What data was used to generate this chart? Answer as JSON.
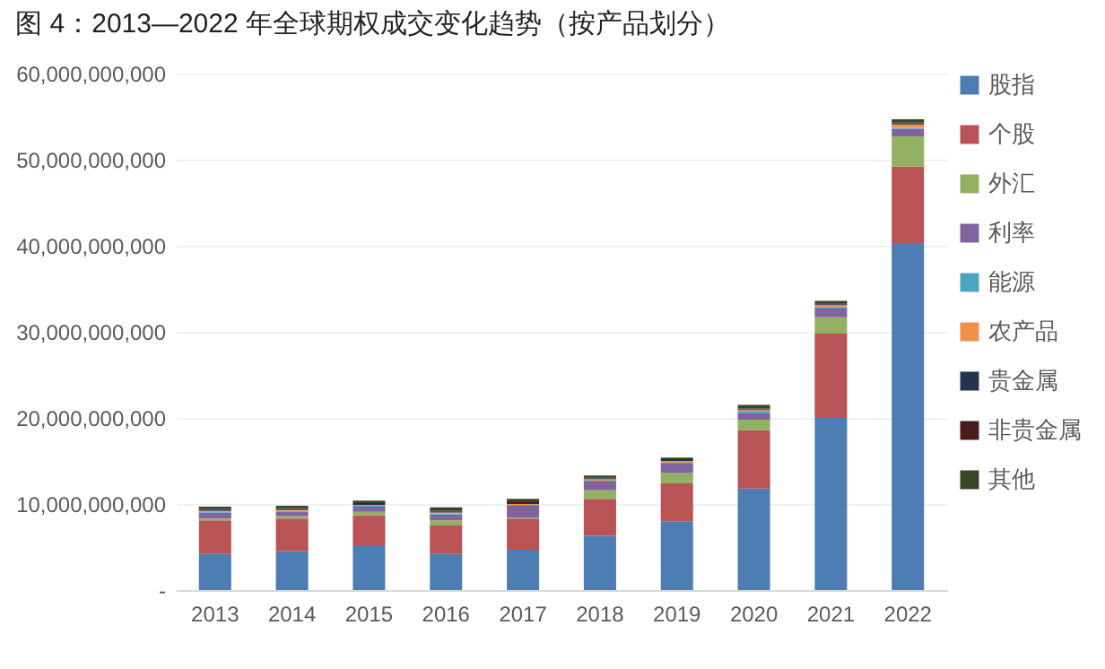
{
  "chart_data": {
    "type": "bar",
    "title": "图 4：2013—2022 年全球期权成交变化趋势（按产品划分）",
    "stacked": true,
    "legend": "right",
    "grid": "y",
    "categories": [
      "2013",
      "2014",
      "2015",
      "2016",
      "2017",
      "2018",
      "2019",
      "2020",
      "2021",
      "2022"
    ],
    "ylim": [
      0,
      60000000000
    ],
    "yticks": [
      {
        "value": 0,
        "label": "-"
      },
      {
        "value": 10000000000,
        "label": "10,000,000,000"
      },
      {
        "value": 20000000000,
        "label": "20,000,000,000"
      },
      {
        "value": 30000000000,
        "label": "30,000,000,000"
      },
      {
        "value": 40000000000,
        "label": "40,000,000,000"
      },
      {
        "value": 50000000000,
        "label": "50,000,000,000"
      },
      {
        "value": 60000000000,
        "label": "60,000,000,000"
      }
    ],
    "series": [
      {
        "name": "股指",
        "color": "#4e7db4",
        "values": [
          4200000000,
          4500000000,
          5100000000,
          4200000000,
          4700000000,
          6300000000,
          8000000000,
          11800000000,
          20100000000,
          40300000000
        ]
      },
      {
        "name": "个股",
        "color": "#b85456",
        "values": [
          3900000000,
          3800000000,
          3600000000,
          3300000000,
          3600000000,
          4300000000,
          4400000000,
          6800000000,
          9700000000,
          8900000000
        ]
      },
      {
        "name": "外汇",
        "color": "#94b063",
        "values": [
          200000000,
          300000000,
          400000000,
          600000000,
          100000000,
          1000000000,
          1200000000,
          1200000000,
          1900000000,
          3500000000
        ]
      },
      {
        "name": "利率",
        "color": "#7f64a0",
        "values": [
          700000000,
          500000000,
          600000000,
          700000000,
          1400000000,
          1000000000,
          1100000000,
          800000000,
          1000000000,
          900000000
        ]
      },
      {
        "name": "能源",
        "color": "#4aa6be",
        "values": [
          100000000,
          100000000,
          100000000,
          100000000,
          100000000,
          100000000,
          100000000,
          200000000,
          200000000,
          100000000
        ]
      },
      {
        "name": "农产品",
        "color": "#f0904a",
        "values": [
          100000000,
          100000000,
          100000000,
          100000000,
          100000000,
          200000000,
          200000000,
          100000000,
          200000000,
          400000000
        ]
      },
      {
        "name": "贵金属",
        "color": "#243350",
        "values": [
          100000000,
          100000000,
          100000000,
          100000000,
          100000000,
          100000000,
          100000000,
          100000000,
          100000000,
          100000000
        ]
      },
      {
        "name": "非贵金属",
        "color": "#4a1c1c",
        "values": [
          100000000,
          100000000,
          100000000,
          100000000,
          100000000,
          100000000,
          100000000,
          100000000,
          100000000,
          100000000
        ]
      },
      {
        "name": "其他",
        "color": "#38452a",
        "values": [
          300000000,
          300000000,
          300000000,
          400000000,
          400000000,
          200000000,
          200000000,
          400000000,
          300000000,
          400000000
        ]
      }
    ]
  }
}
